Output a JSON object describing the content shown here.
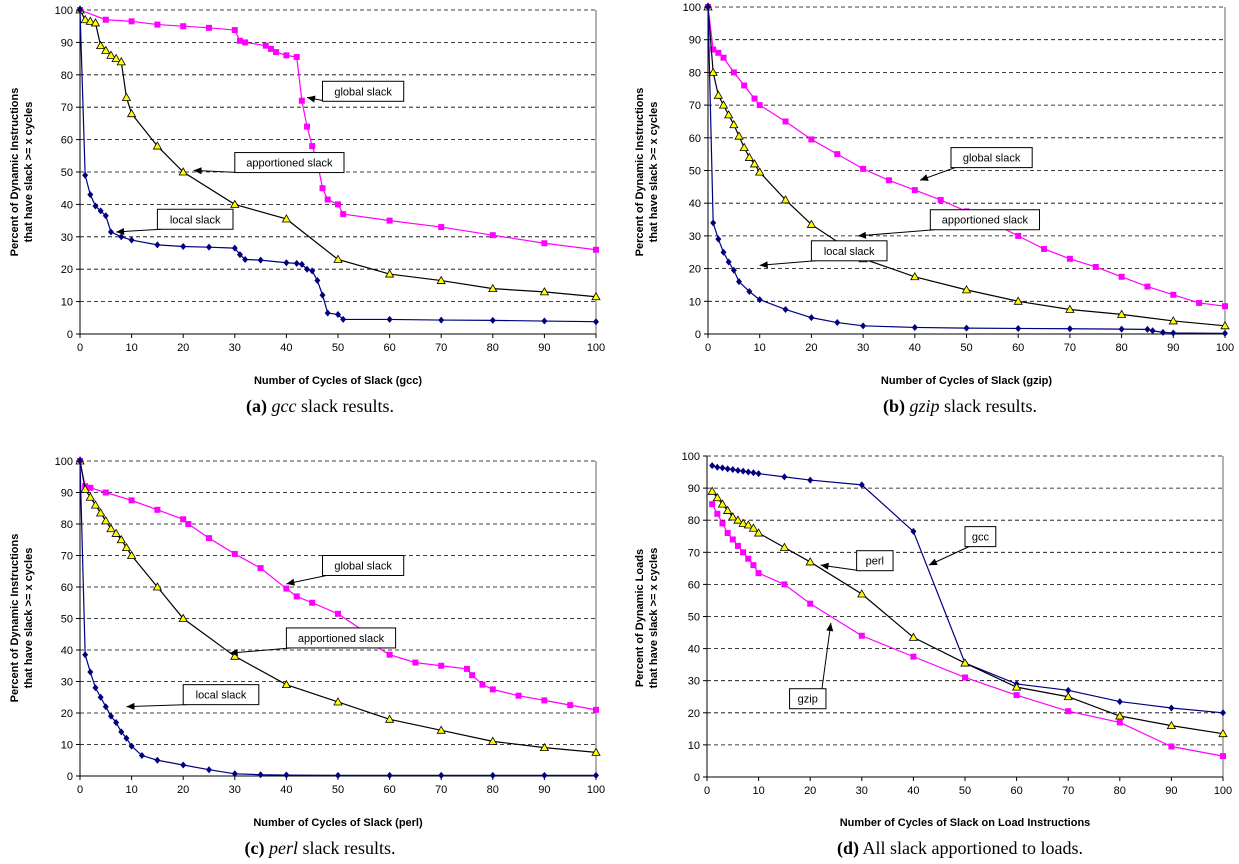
{
  "chart_data": [
    {
      "type": "line",
      "panel_id": "a",
      "ylabel": "Percent of Dynamic Instructions that have slack >= x cycles",
      "xlabel": "Number of Cycles of Slack (gcc)",
      "xlim": [
        0,
        100
      ],
      "ylim": [
        0,
        100
      ],
      "xticks": [
        0,
        10,
        20,
        30,
        40,
        50,
        60,
        70,
        80,
        90,
        100
      ],
      "yticks": [
        0,
        10,
        20,
        30,
        40,
        50,
        60,
        70,
        80,
        90,
        100
      ],
      "grid": "horizontal dashed",
      "caption": {
        "label": "(a)",
        "name": "gcc",
        "rest": " slack results."
      },
      "series": [
        {
          "key": "global",
          "color": "#ff00ff",
          "marker": "square",
          "x": [
            0,
            5,
            10,
            15,
            20,
            25,
            30,
            31,
            32,
            36,
            37,
            38,
            40,
            42,
            43,
            44,
            45,
            46,
            47,
            48,
            50,
            51,
            60,
            70,
            80,
            90,
            100
          ],
          "y": [
            100,
            97,
            96.5,
            95.5,
            95,
            94.5,
            93.8,
            90.5,
            90,
            89,
            88,
            87,
            86,
            85.5,
            72,
            64,
            58,
            53,
            45,
            41.5,
            40,
            37,
            35,
            33,
            30.5,
            28,
            26
          ]
        },
        {
          "key": "apportioned",
          "color": "#000000",
          "marker": "triangle",
          "marker_fill": "#ffff00",
          "x": [
            0,
            1,
            2,
            3,
            4,
            5,
            6,
            7,
            8,
            9,
            10,
            15,
            20,
            30,
            40,
            50,
            60,
            70,
            80,
            90,
            100
          ],
          "y": [
            100,
            97,
            96.5,
            96,
            89,
            87.5,
            86,
            85,
            84,
            73,
            68,
            58,
            50,
            40,
            35.5,
            23,
            18.5,
            16.5,
            14,
            13,
            11.5
          ]
        },
        {
          "key": "local",
          "color": "#000080",
          "marker": "diamond",
          "x": [
            0,
            1,
            2,
            3,
            4,
            5,
            6,
            8,
            10,
            15,
            20,
            25,
            30,
            31,
            32,
            35,
            40,
            42,
            43,
            44,
            45,
            46,
            47,
            48,
            50,
            51,
            60,
            70,
            80,
            90,
            100
          ],
          "y": [
            100,
            49,
            43,
            39.5,
            38,
            36.5,
            31.5,
            30,
            29,
            27.5,
            27,
            26.8,
            26.5,
            24.5,
            23,
            22.8,
            22,
            21.8,
            21.5,
            20,
            19.5,
            16.5,
            12,
            6.5,
            6,
            4.5,
            4.5,
            4.3,
            4.2,
            4.0,
            3.8
          ]
        }
      ],
      "annotations": [
        {
          "text": "global slack",
          "box_x": 47,
          "box_y": 78,
          "point_x": 44,
          "point_y": 73
        },
        {
          "text": "apportioned slack",
          "box_x": 30,
          "box_y": 56,
          "point_x": 22,
          "point_y": 50.5
        },
        {
          "text": "local slack",
          "box_x": 15,
          "box_y": 38.5,
          "point_x": 7,
          "point_y": 31.5
        }
      ]
    },
    {
      "type": "line",
      "panel_id": "b",
      "ylabel": "Percent of Dynamic Instructions that have slack >= x cycles",
      "xlabel": "Number of Cycles of Slack (gzip)",
      "xlim": [
        0,
        100
      ],
      "ylim": [
        0,
        100
      ],
      "xticks": [
        0,
        10,
        20,
        30,
        40,
        50,
        60,
        70,
        80,
        90,
        100
      ],
      "yticks": [
        0,
        10,
        20,
        30,
        40,
        50,
        60,
        70,
        80,
        90,
        100
      ],
      "grid": "horizontal dashed",
      "caption": {
        "label": "(b)",
        "name": "gzip",
        "rest": " slack results."
      },
      "series": [
        {
          "key": "global",
          "color": "#ff00ff",
          "marker": "square",
          "x": [
            0,
            1,
            2,
            3,
            5,
            7,
            9,
            10,
            15,
            20,
            25,
            30,
            35,
            40,
            45,
            50,
            55,
            60,
            65,
            70,
            75,
            80,
            85,
            90,
            95,
            100
          ],
          "y": [
            100,
            87,
            86,
            84.5,
            80,
            76,
            72,
            70,
            65,
            59.5,
            55,
            50.5,
            47,
            44,
            41,
            37.5,
            34,
            30,
            26,
            23,
            20.5,
            17.5,
            14.5,
            12,
            9.5,
            8.5
          ]
        },
        {
          "key": "apportioned",
          "color": "#000000",
          "marker": "triangle",
          "marker_fill": "#ffff00",
          "x": [
            0,
            1,
            2,
            3,
            4,
            5,
            6,
            7,
            8,
            9,
            10,
            15,
            20,
            30,
            40,
            50,
            60,
            70,
            80,
            90,
            100
          ],
          "y": [
            100,
            80,
            73,
            70,
            67,
            64,
            60.5,
            57,
            54,
            52,
            49.5,
            41,
            33.5,
            23,
            17.5,
            13.5,
            10,
            7.5,
            6,
            4,
            2.5
          ]
        },
        {
          "key": "local",
          "color": "#000080",
          "marker": "diamond",
          "x": [
            0,
            1,
            2,
            3,
            4,
            5,
            6,
            8,
            10,
            15,
            20,
            25,
            30,
            40,
            50,
            60,
            70,
            80,
            85,
            86,
            88,
            90,
            100
          ],
          "y": [
            100,
            34,
            29,
            25,
            22,
            19.5,
            16,
            13,
            10.5,
            7.5,
            5,
            3.5,
            2.5,
            2,
            1.8,
            1.7,
            1.6,
            1.5,
            1.4,
            1.0,
            0.5,
            0.3,
            0.2
          ]
        }
      ],
      "annotations": [
        {
          "text": "global slack",
          "box_x": 47,
          "box_y": 57,
          "point_x": 41,
          "point_y": 47
        },
        {
          "text": "apportioned slack",
          "box_x": 43,
          "box_y": 38,
          "point_x": 29,
          "point_y": 30
        },
        {
          "text": "local slack",
          "box_x": 20,
          "box_y": 28.5,
          "point_x": 10,
          "point_y": 21
        }
      ]
    },
    {
      "type": "line",
      "panel_id": "c",
      "ylabel": "Percent of Dynamic Instructions that have slack >= x cycles",
      "xlabel": "Number of Cycles of Slack (perl)",
      "xlim": [
        0,
        100
      ],
      "ylim": [
        0,
        100
      ],
      "xticks": [
        0,
        10,
        20,
        30,
        40,
        50,
        60,
        70,
        80,
        90,
        100
      ],
      "yticks": [
        0,
        10,
        20,
        30,
        40,
        50,
        60,
        70,
        80,
        90,
        100
      ],
      "grid": "horizontal dashed",
      "caption": {
        "label": "(c)",
        "name": "perl",
        "rest": " slack results."
      },
      "series": [
        {
          "key": "global",
          "color": "#ff00ff",
          "marker": "square",
          "x": [
            0,
            1,
            2,
            5,
            10,
            15,
            20,
            21,
            25,
            30,
            35,
            40,
            42,
            45,
            50,
            55,
            57,
            60,
            65,
            70,
            75,
            76,
            78,
            80,
            85,
            90,
            95,
            100
          ],
          "y": [
            100,
            92,
            91.5,
            90,
            87.5,
            84.5,
            81.5,
            80,
            75.5,
            70.5,
            66,
            59.5,
            57,
            55,
            51.5,
            46,
            41.5,
            38.5,
            36,
            35,
            34,
            32,
            29,
            27.5,
            25.5,
            24,
            22.5,
            21
          ]
        },
        {
          "key": "apportioned",
          "color": "#000000",
          "marker": "triangle",
          "marker_fill": "#ffff00",
          "x": [
            0,
            1,
            2,
            3,
            4,
            5,
            6,
            7,
            8,
            9,
            10,
            15,
            20,
            30,
            40,
            50,
            60,
            70,
            80,
            90,
            100
          ],
          "y": [
            100,
            91,
            88.5,
            86,
            83.5,
            81,
            78.5,
            77,
            75,
            72.5,
            70,
            60,
            50,
            38,
            29,
            23.5,
            18,
            14.5,
            11,
            9,
            7.5
          ]
        },
        {
          "key": "local",
          "color": "#000080",
          "marker": "diamond",
          "x": [
            0,
            1,
            2,
            3,
            4,
            5,
            6,
            7,
            8,
            9,
            10,
            12,
            15,
            20,
            25,
            30,
            35,
            40,
            50,
            60,
            70,
            80,
            90,
            100
          ],
          "y": [
            100,
            38.5,
            33,
            28,
            25,
            22,
            19,
            17,
            14,
            12,
            9.5,
            6.5,
            5,
            3.5,
            2,
            0.7,
            0.4,
            0.3,
            0.2,
            0.2,
            0.2,
            0.2,
            0.2,
            0.2
          ]
        }
      ],
      "annotations": [
        {
          "text": "global slack",
          "box_x": 47,
          "box_y": 70,
          "point_x": 40,
          "point_y": 61
        },
        {
          "text": "apportioned slack",
          "box_x": 40,
          "box_y": 47,
          "point_x": 29,
          "point_y": 39
        },
        {
          "text": "local slack",
          "box_x": 20,
          "box_y": 29,
          "point_x": 9,
          "point_y": 22
        }
      ]
    },
    {
      "type": "line",
      "panel_id": "d",
      "ylabel": "Percent of Dynamic Loads that have slack >= x cycles",
      "xlabel": "Number of Cycles of Slack on Load Instructions",
      "xlim": [
        0,
        100
      ],
      "ylim": [
        0,
        100
      ],
      "xticks": [
        0,
        10,
        20,
        30,
        40,
        50,
        60,
        70,
        80,
        90,
        100
      ],
      "yticks": [
        0,
        10,
        20,
        30,
        40,
        50,
        60,
        70,
        80,
        90,
        100
      ],
      "grid": "horizontal dashed",
      "caption": {
        "label": "(d)",
        "name": "",
        "rest": " All slack apportioned to loads."
      },
      "series": [
        {
          "key": "gcc",
          "color": "#000080",
          "marker": "diamond",
          "x": [
            1,
            2,
            3,
            4,
            5,
            6,
            7,
            8,
            9,
            10,
            15,
            20,
            30,
            40,
            50,
            60,
            70,
            80,
            90,
            100
          ],
          "y": [
            97,
            96.5,
            96.3,
            96,
            95.8,
            95.5,
            95.3,
            95,
            94.8,
            94.5,
            93.5,
            92.5,
            91,
            76.5,
            35.5,
            29,
            27,
            23.5,
            21.5,
            20
          ]
        },
        {
          "key": "perl",
          "color": "#000000",
          "marker": "triangle",
          "marker_fill": "#ffff00",
          "x": [
            1,
            2,
            3,
            4,
            5,
            6,
            7,
            8,
            9,
            10,
            15,
            20,
            30,
            40,
            50,
            60,
            70,
            80,
            90,
            100
          ],
          "y": [
            89,
            87,
            85,
            83,
            81,
            80,
            79,
            78.5,
            77.5,
            76,
            71.5,
            67,
            57,
            43.5,
            35.5,
            28,
            25,
            19,
            16,
            13.5
          ]
        },
        {
          "key": "gzip",
          "color": "#ff00ff",
          "marker": "square",
          "x": [
            1,
            2,
            3,
            4,
            5,
            6,
            7,
            8,
            9,
            10,
            15,
            20,
            30,
            40,
            50,
            60,
            70,
            80,
            90,
            100
          ],
          "y": [
            85,
            82,
            79,
            76,
            74,
            72,
            70,
            68,
            66,
            63.5,
            60,
            54,
            44,
            37.5,
            31,
            25.5,
            20.5,
            17,
            9.5,
            6.5
          ]
        }
      ],
      "annotations": [
        {
          "text": "gcc",
          "box_x": 50,
          "box_y": 78,
          "point_x": 43,
          "point_y": 66
        },
        {
          "text": "perl",
          "box_x": 29,
          "box_y": 70.5,
          "point_x": 22,
          "point_y": 66
        },
        {
          "text": "gzip",
          "box_x": 16,
          "box_y": 27.5,
          "point_x": 24,
          "point_y": 48
        }
      ]
    }
  ]
}
